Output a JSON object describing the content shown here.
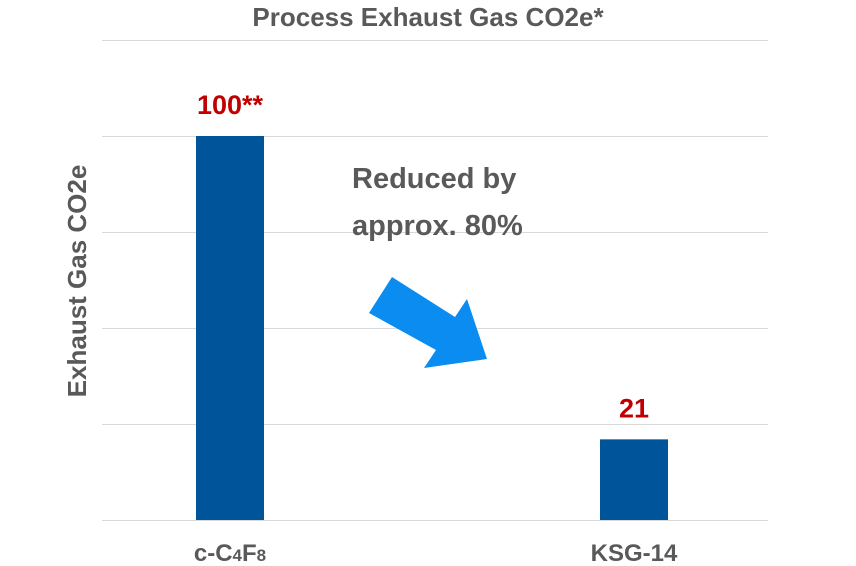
{
  "chart_data": {
    "type": "bar",
    "title": "Process Exhaust Gas CO2e*",
    "ylabel": "Exhaust Gas CO2e",
    "xlabel": "",
    "categories": [
      {
        "prefix": "c-C",
        "sub1": "4",
        "mid": "F",
        "sub2": "8"
      },
      {
        "prefix": "KSG-14",
        "sub1": "",
        "mid": "",
        "sub2": ""
      }
    ],
    "values": [
      100,
      21
    ],
    "value_labels": [
      "100**",
      "21"
    ],
    "ylim": [
      0,
      125
    ],
    "ytick_step": 25,
    "grid": true,
    "tick_labels_visible": false,
    "annotation": {
      "lines": [
        "Reduced by",
        "approx. 80%"
      ],
      "arrow": "down-right"
    }
  },
  "colors": {
    "bar": "#00549a",
    "value_label": "#c00000",
    "arrow": "#0a8cf0",
    "text": "#595959",
    "grid": "#d9d9d9"
  }
}
